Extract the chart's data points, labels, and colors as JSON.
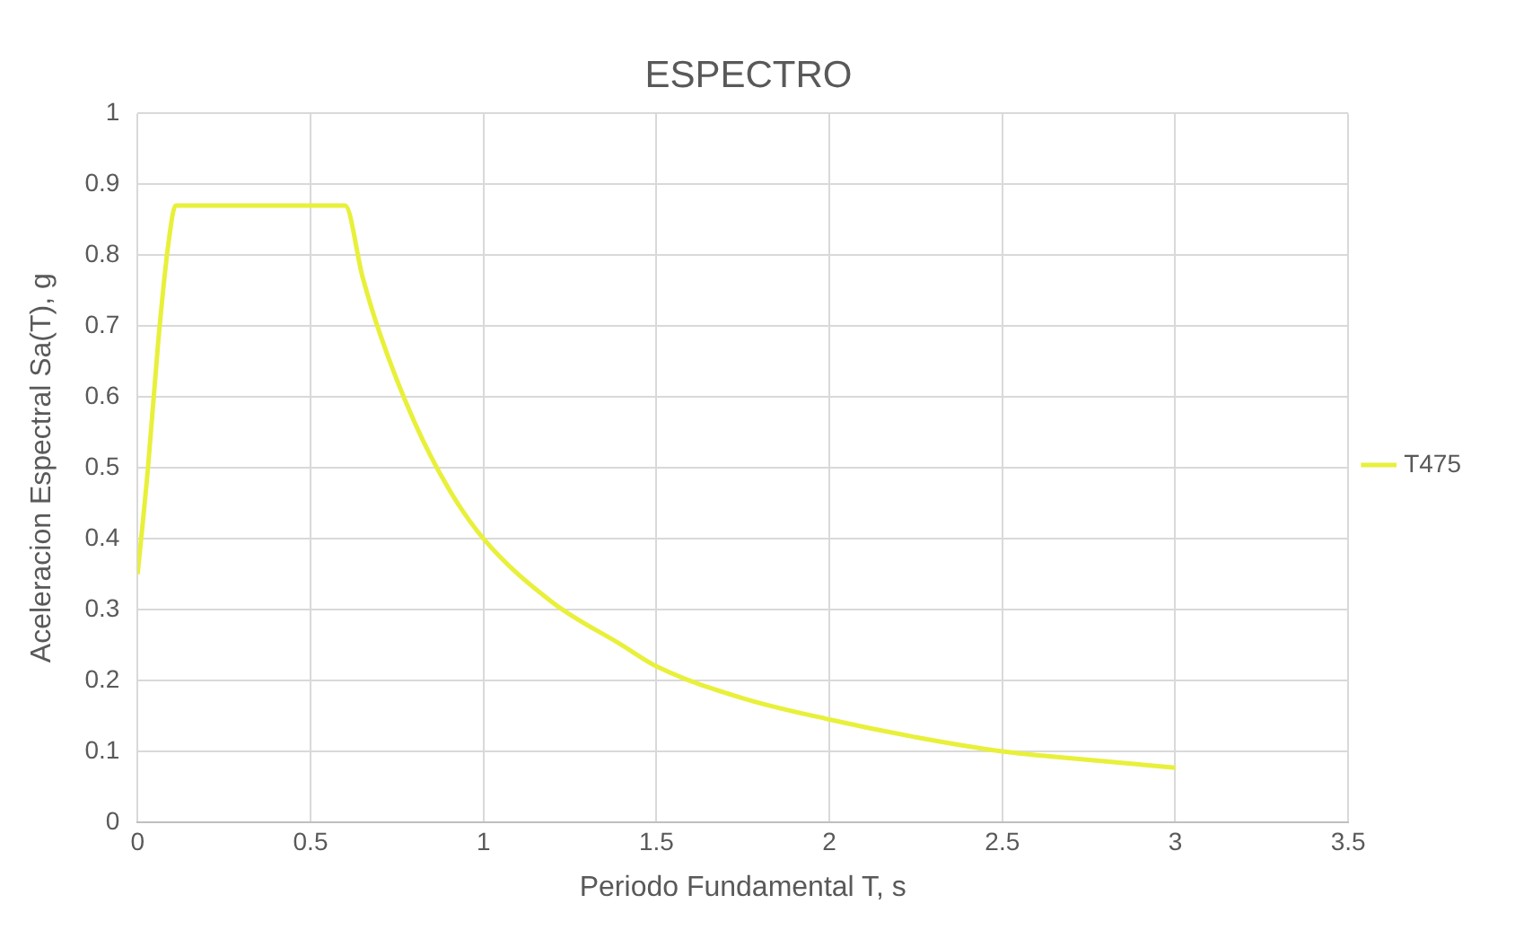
{
  "chart_data": {
    "type": "line",
    "title": "ESPECTRO",
    "xlabel": "Periodo Fundamental T, s",
    "ylabel": "Aceleracion Espectral Sa(T), g",
    "x": [
      0,
      0.03,
      0.06,
      0.09,
      0.11,
      0.13,
      0.6,
      0.65,
      0.7,
      0.8,
      0.9,
      1,
      1.2,
      1.4,
      1.5,
      1.75,
      2,
      2.25,
      2.5,
      2.75,
      3
    ],
    "series": [
      {
        "name": "T475",
        "color": "#e8f03a",
        "values": [
          0.35,
          0.5,
          0.68,
          0.82,
          0.87,
          0.87,
          0.87,
          0.77,
          0.69,
          0.565,
          0.47,
          0.4,
          0.31,
          0.25,
          0.22,
          0.175,
          0.145,
          0.12,
          0.1,
          0.088,
          0.077
        ]
      }
    ],
    "xlim": [
      0,
      3.5
    ],
    "xticks": [
      0,
      0.5,
      1,
      1.5,
      2,
      2.5,
      3,
      3.5
    ],
    "ylim": [
      0,
      1
    ],
    "yticks": [
      0,
      0.1,
      0.2,
      0.3,
      0.4,
      0.5,
      0.6,
      0.7,
      0.8,
      0.9,
      1
    ],
    "grid": true,
    "legend": "right",
    "marker": "none",
    "line_style": "solid"
  }
}
